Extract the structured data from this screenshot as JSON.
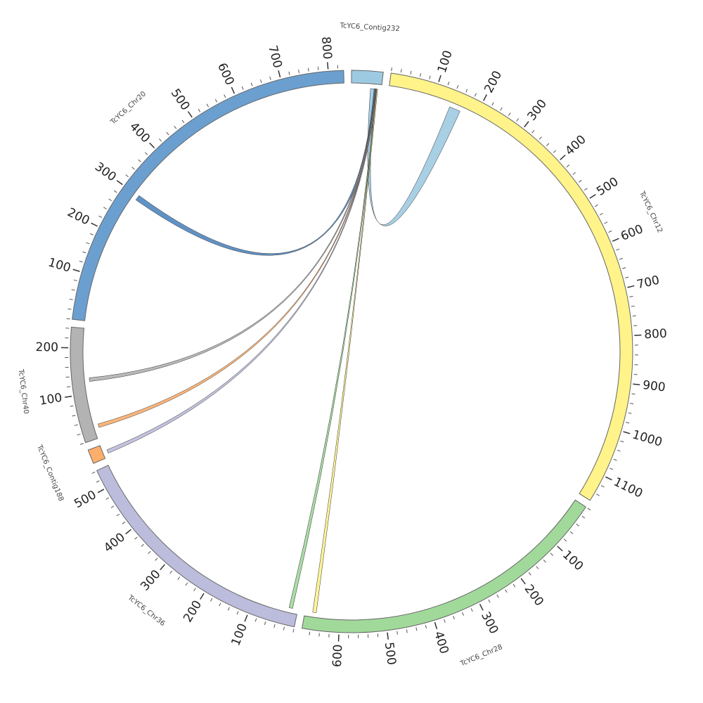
{
  "chart_data": {
    "type": "chord",
    "segments": [
      {
        "name": "TcYC6_Contig232",
        "color": "#9ecae1",
        "length": 66
      },
      {
        "name": "TcYC6_Chr12",
        "color": "#fff38a",
        "length": 1158,
        "ticks": [
          100,
          200,
          300,
          400,
          500,
          600,
          700,
          800,
          900,
          1000,
          1100
        ]
      },
      {
        "name": "TcYC6_Chr28",
        "color": "#a1d99b",
        "length": 677,
        "ticks": [
          100,
          200,
          300,
          400,
          500,
          600
        ]
      },
      {
        "name": "TcYC6_Chr36",
        "color": "#bcbddc",
        "length": 541,
        "ticks": [
          100,
          200,
          300,
          400,
          500
        ]
      },
      {
        "name": "TcYC6_Contig188",
        "color": "#fdae6b",
        "length": 30
      },
      {
        "name": "TcYC6_Chr40",
        "color": "#b3b3b3",
        "length": 243,
        "ticks": [
          100,
          200
        ]
      },
      {
        "name": "TcYC6_Chr20",
        "color": "#6b9fd0",
        "length": 832,
        "ticks": [
          100,
          200,
          300,
          400,
          500,
          600,
          700,
          800
        ]
      }
    ],
    "links": [
      {
        "source_segment": 0,
        "source_start": 42,
        "source_end": 52,
        "target_segment": 1,
        "target_start": 140,
        "target_end": 165,
        "color": "#9ecae1"
      },
      {
        "source_segment": 0,
        "source_start": 50,
        "source_end": 56,
        "target_segment": 6,
        "target_start": 290,
        "target_end": 302,
        "color": "#4f86c0"
      },
      {
        "source_segment": 0,
        "source_start": 52,
        "source_end": 55,
        "target_segment": 5,
        "target_start": 126,
        "target_end": 134,
        "color": "#b3b3b3"
      },
      {
        "source_segment": 0,
        "source_start": 53,
        "source_end": 55,
        "target_segment": 5,
        "target_start": 22,
        "target_end": 30,
        "color": "#fdae6b"
      },
      {
        "source_segment": 0,
        "source_start": 54,
        "source_end": 56,
        "target_segment": 4,
        "target_start": 8,
        "target_end": 16,
        "color": "#bcbddc"
      },
      {
        "source_segment": 0,
        "source_start": 55,
        "source_end": 57,
        "target_segment": 3,
        "target_start": 12,
        "target_end": 20,
        "color": "#a1d99b"
      },
      {
        "source_segment": 0,
        "source_start": 56,
        "source_end": 58,
        "target_segment": 2,
        "target_start": 652,
        "target_end": 660,
        "color": "#fff38a"
      }
    ]
  }
}
